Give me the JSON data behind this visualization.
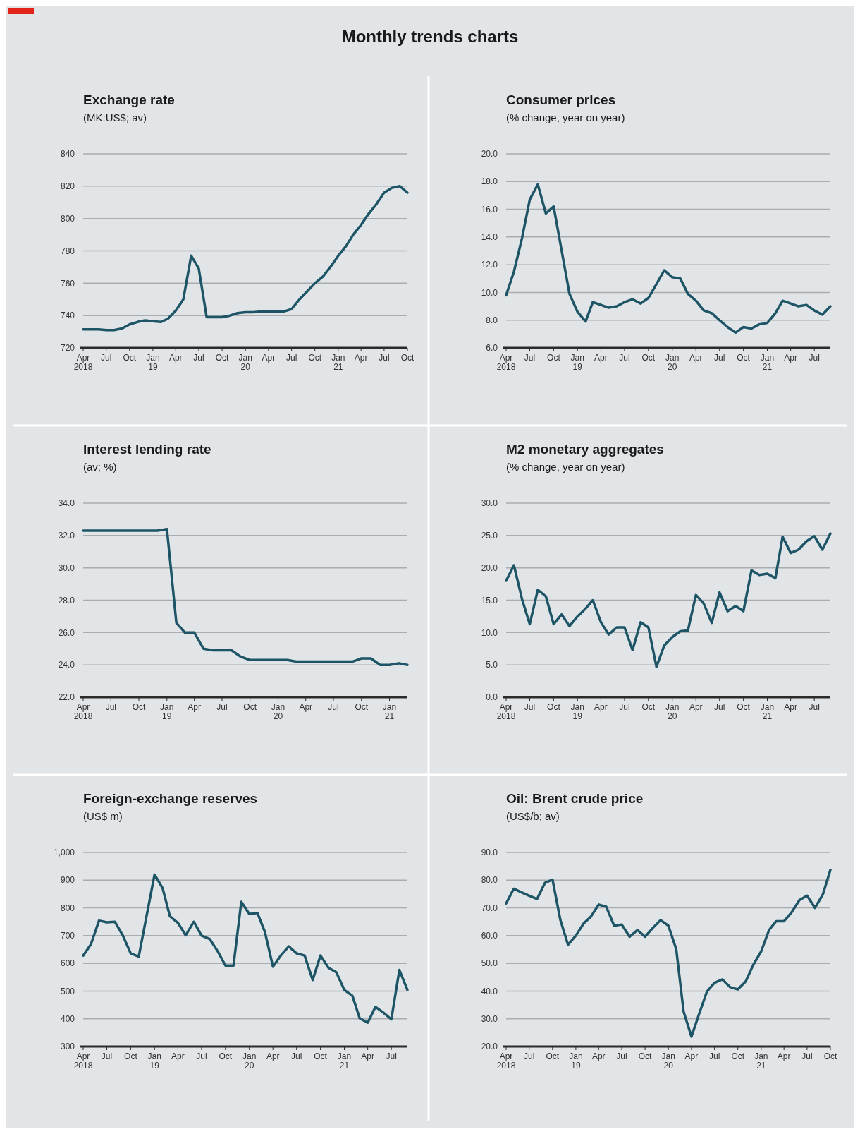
{
  "chart_data": [
    {
      "type": "other",
      "title": "Monthly trends charts"
    },
    {
      "type": "line",
      "title": "Exchange rate",
      "subtitle": "(MK:US$; av)",
      "grid": "y",
      "color": "#1d5466",
      "xlim": [
        "2018-04",
        "2021-10"
      ],
      "ylim": [
        720,
        840
      ],
      "yticks": [
        720,
        740,
        760,
        780,
        800,
        820,
        840
      ],
      "xticks": [
        {
          "value": "2018-04",
          "label": "Apr\n2018"
        },
        {
          "value": "2018-07",
          "label": "Jul"
        },
        {
          "value": "2018-10",
          "label": "Oct"
        },
        {
          "value": "2019-01",
          "label": "Jan\n19"
        },
        {
          "value": "2019-04",
          "label": "Apr"
        },
        {
          "value": "2019-07",
          "label": "Jul"
        },
        {
          "value": "2019-10",
          "label": "Oct"
        },
        {
          "value": "2020-01",
          "label": "Jan\n20"
        },
        {
          "value": "2020-04",
          "label": "Apr"
        },
        {
          "value": "2020-07",
          "label": "Jul"
        },
        {
          "value": "2020-10",
          "label": "Oct"
        },
        {
          "value": "2021-01",
          "label": "Jan\n21"
        },
        {
          "value": "2021-04",
          "label": "Apr"
        },
        {
          "value": "2021-07",
          "label": "Jul"
        },
        {
          "value": "2021-10",
          "label": "Oct"
        }
      ],
      "x": [
        "2018-04",
        "2018-05",
        "2018-06",
        "2018-07",
        "2018-08",
        "2018-09",
        "2018-10",
        "2018-11",
        "2018-12",
        "2019-01",
        "2019-02",
        "2019-03",
        "2019-04",
        "2019-05",
        "2019-06",
        "2019-07",
        "2019-08",
        "2019-09",
        "2019-10",
        "2019-11",
        "2019-12",
        "2020-01",
        "2020-02",
        "2020-03",
        "2020-04",
        "2020-05",
        "2020-06",
        "2020-07",
        "2020-08",
        "2020-09",
        "2020-10",
        "2020-11",
        "2020-12",
        "2021-01",
        "2021-02",
        "2021-03",
        "2021-04",
        "2021-05",
        "2021-06",
        "2021-07",
        "2021-08",
        "2021-09",
        "2021-10"
      ],
      "values": [
        731.5,
        731.5,
        731.5,
        731,
        731,
        732,
        734.5,
        736,
        737,
        736.5,
        736,
        738,
        743,
        750,
        777,
        769,
        739,
        739,
        739,
        740,
        741.5,
        742,
        742,
        742.5,
        742.5,
        742.5,
        742.5,
        744,
        750,
        755,
        760,
        764,
        770,
        777,
        783,
        790,
        796,
        803,
        809,
        816,
        819,
        820,
        816
      ]
    },
    {
      "type": "line",
      "title": "Consumer prices",
      "subtitle": "(% change, year on year)",
      "grid": "y",
      "color": "#1d5466",
      "xlim": [
        "2018-04",
        "2021-09"
      ],
      "ylim": [
        6,
        20
      ],
      "yticks": [
        {
          "value": 6,
          "label": "6.0"
        },
        {
          "value": 8,
          "label": "8.0"
        },
        {
          "value": 10,
          "label": "10.0"
        },
        {
          "value": 12,
          "label": "12.0"
        },
        {
          "value": 14,
          "label": "14.0"
        },
        {
          "value": 16,
          "label": "16.0"
        },
        {
          "value": 18,
          "label": "18.0"
        },
        {
          "value": 20,
          "label": "20.0"
        }
      ],
      "xticks": [
        {
          "value": "2018-04",
          "label": "Apr\n2018"
        },
        {
          "value": "2018-07",
          "label": "Jul"
        },
        {
          "value": "2018-10",
          "label": "Oct"
        },
        {
          "value": "2019-01",
          "label": "Jan\n19"
        },
        {
          "value": "2019-04",
          "label": "Apr"
        },
        {
          "value": "2019-07",
          "label": "Jul"
        },
        {
          "value": "2019-10",
          "label": "Oct"
        },
        {
          "value": "2020-01",
          "label": "Jan\n20"
        },
        {
          "value": "2020-04",
          "label": "Apr"
        },
        {
          "value": "2020-07",
          "label": "Jul"
        },
        {
          "value": "2020-10",
          "label": "Oct"
        },
        {
          "value": "2021-01",
          "label": "Jan\n21"
        },
        {
          "value": "2021-04",
          "label": "Apr"
        },
        {
          "value": "2021-07",
          "label": "Jul"
        }
      ],
      "x": [
        "2018-04",
        "2018-05",
        "2018-06",
        "2018-07",
        "2018-08",
        "2018-09",
        "2018-10",
        "2018-11",
        "2018-12",
        "2019-01",
        "2019-02",
        "2019-03",
        "2019-04",
        "2019-05",
        "2019-06",
        "2019-07",
        "2019-08",
        "2019-09",
        "2019-10",
        "2019-11",
        "2019-12",
        "2020-01",
        "2020-02",
        "2020-03",
        "2020-04",
        "2020-05",
        "2020-06",
        "2020-07",
        "2020-08",
        "2020-09",
        "2020-10",
        "2020-11",
        "2020-12",
        "2021-01",
        "2021-02",
        "2021-03",
        "2021-04",
        "2021-05",
        "2021-06",
        "2021-07",
        "2021-08",
        "2021-09"
      ],
      "values": [
        9.8,
        11.5,
        13.9,
        16.7,
        17.8,
        15.7,
        16.2,
        13.0,
        9.9,
        8.6,
        7.9,
        9.3,
        9.1,
        8.9,
        9.0,
        9.3,
        9.5,
        9.2,
        9.6,
        10.6,
        11.6,
        11.1,
        11.0,
        9.9,
        9.4,
        8.7,
        8.5,
        8.0,
        7.5,
        7.1,
        7.5,
        7.4,
        7.7,
        7.8,
        8.5,
        9.4,
        9.2,
        9.0,
        9.1,
        8.7,
        8.4,
        9.0
      ]
    },
    {
      "type": "line",
      "title": "Interest lending rate",
      "subtitle": "(av; %)",
      "grid": "y",
      "color": "#1d5466",
      "xlim": [
        "2018-04",
        "2021-03"
      ],
      "ylim": [
        22,
        34
      ],
      "yticks": [
        {
          "value": 22,
          "label": "22.0"
        },
        {
          "value": 24,
          "label": "24.0"
        },
        {
          "value": 26,
          "label": "26.0"
        },
        {
          "value": 28,
          "label": "28.0"
        },
        {
          "value": 30,
          "label": "30.0"
        },
        {
          "value": 32,
          "label": "32.0"
        },
        {
          "value": 34,
          "label": "34.0"
        }
      ],
      "xticks": [
        {
          "value": "2018-04",
          "label": "Apr\n2018"
        },
        {
          "value": "2018-07",
          "label": "Jul"
        },
        {
          "value": "2018-10",
          "label": "Oct"
        },
        {
          "value": "2019-01",
          "label": "Jan\n19"
        },
        {
          "value": "2019-04",
          "label": "Apr"
        },
        {
          "value": "2019-07",
          "label": "Jul"
        },
        {
          "value": "2019-10",
          "label": "Oct"
        },
        {
          "value": "2020-01",
          "label": "Jan\n20"
        },
        {
          "value": "2020-04",
          "label": "Apr"
        },
        {
          "value": "2020-07",
          "label": "Jul"
        },
        {
          "value": "2020-10",
          "label": "Oct"
        },
        {
          "value": "2021-01",
          "label": "Jan\n21"
        }
      ],
      "x": [
        "2018-04",
        "2018-05",
        "2018-06",
        "2018-07",
        "2018-08",
        "2018-09",
        "2018-10",
        "2018-11",
        "2018-12",
        "2019-01",
        "2019-02",
        "2019-03",
        "2019-04",
        "2019-05",
        "2019-06",
        "2019-07",
        "2019-08",
        "2019-09",
        "2019-10",
        "2019-11",
        "2019-12",
        "2020-01",
        "2020-02",
        "2020-03",
        "2020-04",
        "2020-05",
        "2020-06",
        "2020-07",
        "2020-08",
        "2020-09",
        "2020-10",
        "2020-11",
        "2020-12",
        "2021-01",
        "2021-02",
        "2021-03"
      ],
      "values": [
        32.3,
        32.3,
        32.3,
        32.3,
        32.3,
        32.3,
        32.3,
        32.3,
        32.3,
        32.4,
        26.6,
        26.0,
        26.0,
        25.0,
        24.9,
        24.9,
        24.9,
        24.5,
        24.3,
        24.3,
        24.3,
        24.3,
        24.3,
        24.2,
        24.2,
        24.2,
        24.2,
        24.2,
        24.2,
        24.2,
        24.4,
        24.4,
        24.0,
        24.0,
        24.1,
        24.0
      ]
    },
    {
      "type": "line",
      "title": "M2 monetary aggregates",
      "subtitle": "(% change, year on year)",
      "grid": "y",
      "color": "#1d5466",
      "xlim": [
        "2018-04",
        "2021-09"
      ],
      "ylim": [
        0,
        30
      ],
      "yticks": [
        {
          "value": 0,
          "label": "0.0"
        },
        {
          "value": 5,
          "label": "5.0"
        },
        {
          "value": 10,
          "label": "10.0"
        },
        {
          "value": 15,
          "label": "15.0"
        },
        {
          "value": 20,
          "label": "20.0"
        },
        {
          "value": 25,
          "label": "25.0"
        },
        {
          "value": 30,
          "label": "30.0"
        }
      ],
      "xticks": [
        {
          "value": "2018-04",
          "label": "Apr\n2018"
        },
        {
          "value": "2018-07",
          "label": "Jul"
        },
        {
          "value": "2018-10",
          "label": "Oct"
        },
        {
          "value": "2019-01",
          "label": "Jan\n19"
        },
        {
          "value": "2019-04",
          "label": "Apr"
        },
        {
          "value": "2019-07",
          "label": "Jul"
        },
        {
          "value": "2019-10",
          "label": "Oct"
        },
        {
          "value": "2020-01",
          "label": "Jan\n20"
        },
        {
          "value": "2020-04",
          "label": "Apr"
        },
        {
          "value": "2020-07",
          "label": "Jul"
        },
        {
          "value": "2020-10",
          "label": "Oct"
        },
        {
          "value": "2021-01",
          "label": "Jan\n21"
        },
        {
          "value": "2021-04",
          "label": "Apr"
        },
        {
          "value": "2021-07",
          "label": "Jul"
        }
      ],
      "x": [
        "2018-04",
        "2018-05",
        "2018-06",
        "2018-07",
        "2018-08",
        "2018-09",
        "2018-10",
        "2018-11",
        "2018-12",
        "2019-01",
        "2019-02",
        "2019-03",
        "2019-04",
        "2019-05",
        "2019-06",
        "2019-07",
        "2019-08",
        "2019-09",
        "2019-10",
        "2019-11",
        "2019-12",
        "2020-01",
        "2020-02",
        "2020-03",
        "2020-04",
        "2020-05",
        "2020-06",
        "2020-07",
        "2020-08",
        "2020-09",
        "2020-10",
        "2020-11",
        "2020-12",
        "2021-01",
        "2021-02",
        "2021-03",
        "2021-04",
        "2021-05",
        "2021-06",
        "2021-07",
        "2021-08",
        "2021-09"
      ],
      "values": [
        18.0,
        20.4,
        15.2,
        11.3,
        16.6,
        15.6,
        11.3,
        12.8,
        11.0,
        12.5,
        13.7,
        15.0,
        11.6,
        9.7,
        10.8,
        10.8,
        7.3,
        11.6,
        10.8,
        4.7,
        8.0,
        9.3,
        10.2,
        10.3,
        15.8,
        14.5,
        11.5,
        16.2,
        13.3,
        14.1,
        13.3,
        19.6,
        18.9,
        19.1,
        18.4,
        24.8,
        22.3,
        22.8,
        24.1,
        24.9,
        22.8,
        25.3
      ]
    },
    {
      "type": "line",
      "title": "Foreign-exchange reserves",
      "subtitle": "(US$ m)",
      "grid": "y",
      "color": "#1d5466",
      "xlim": [
        "2018-04",
        "2021-09"
      ],
      "ylim": [
        300,
        1000
      ],
      "yticks": [
        300,
        400,
        500,
        600,
        700,
        800,
        900,
        {
          "value": 1000,
          "label": "1,000"
        }
      ],
      "xticks": [
        {
          "value": "2018-04",
          "label": "Apr\n2018"
        },
        {
          "value": "2018-07",
          "label": "Jul"
        },
        {
          "value": "2018-10",
          "label": "Oct"
        },
        {
          "value": "2019-01",
          "label": "Jan\n19"
        },
        {
          "value": "2019-04",
          "label": "Apr"
        },
        {
          "value": "2019-07",
          "label": "Jul"
        },
        {
          "value": "2019-10",
          "label": "Oct"
        },
        {
          "value": "2020-01",
          "label": "Jan\n20"
        },
        {
          "value": "2020-04",
          "label": "Apr"
        },
        {
          "value": "2020-07",
          "label": "Jul"
        },
        {
          "value": "2020-10",
          "label": "Oct"
        },
        {
          "value": "2021-01",
          "label": "Jan\n21"
        },
        {
          "value": "2021-04",
          "label": "Apr"
        },
        {
          "value": "2021-07",
          "label": "Jul"
        }
      ],
      "x": [
        "2018-04",
        "2018-05",
        "2018-06",
        "2018-07",
        "2018-08",
        "2018-09",
        "2018-10",
        "2018-11",
        "2018-12",
        "2019-01",
        "2019-02",
        "2019-03",
        "2019-04",
        "2019-05",
        "2019-06",
        "2019-07",
        "2019-08",
        "2019-09",
        "2019-10",
        "2019-11",
        "2019-12",
        "2020-01",
        "2020-02",
        "2020-03",
        "2020-04",
        "2020-05",
        "2020-06",
        "2020-07",
        "2020-08",
        "2020-09",
        "2020-10",
        "2020-11",
        "2020-12",
        "2021-01",
        "2021-02",
        "2021-03",
        "2021-04",
        "2021-05",
        "2021-06",
        "2021-07",
        "2021-08",
        "2021-09"
      ],
      "values": [
        628,
        669,
        754,
        748,
        750,
        700,
        636,
        624,
        770,
        920,
        871,
        770,
        746,
        701,
        750,
        700,
        688,
        644,
        592,
        592,
        822,
        778,
        782,
        713,
        588,
        628,
        661,
        636,
        628,
        540,
        628,
        584,
        568,
        504,
        483,
        402,
        386,
        443,
        422,
        398,
        576,
        504
      ]
    },
    {
      "type": "line",
      "title": "Oil: Brent crude price",
      "subtitle": "(US$/b; av)",
      "grid": "y",
      "color": "#1d5466",
      "xlim": [
        "2018-04",
        "2021-10"
      ],
      "ylim": [
        20,
        90
      ],
      "yticks": [
        {
          "value": 20,
          "label": "20.0"
        },
        {
          "value": 30,
          "label": "30.0"
        },
        {
          "value": 40,
          "label": "40.0"
        },
        {
          "value": 50,
          "label": "50.0"
        },
        {
          "value": 60,
          "label": "60.0"
        },
        {
          "value": 70,
          "label": "70.0"
        },
        {
          "value": 80,
          "label": "80.0"
        },
        {
          "value": 90,
          "label": "90.0"
        }
      ],
      "xticks": [
        {
          "value": "2018-04",
          "label": "Apr\n2018"
        },
        {
          "value": "2018-07",
          "label": "Jul"
        },
        {
          "value": "2018-10",
          "label": "Oct"
        },
        {
          "value": "2019-01",
          "label": "Jan\n19"
        },
        {
          "value": "2019-04",
          "label": "Apr"
        },
        {
          "value": "2019-07",
          "label": "Jul"
        },
        {
          "value": "2019-10",
          "label": "Oct"
        },
        {
          "value": "2020-01",
          "label": "Jan\n20"
        },
        {
          "value": "2020-04",
          "label": "Apr"
        },
        {
          "value": "2020-07",
          "label": "Jul"
        },
        {
          "value": "2020-10",
          "label": "Oct"
        },
        {
          "value": "2021-01",
          "label": "Jan\n21"
        },
        {
          "value": "2021-04",
          "label": "Apr"
        },
        {
          "value": "2021-07",
          "label": "Jul"
        },
        {
          "value": "2021-10",
          "label": "Oct"
        }
      ],
      "x": [
        "2018-04",
        "2018-05",
        "2018-06",
        "2018-07",
        "2018-08",
        "2018-09",
        "2018-10",
        "2018-11",
        "2018-12",
        "2019-01",
        "2019-02",
        "2019-03",
        "2019-04",
        "2019-05",
        "2019-06",
        "2019-07",
        "2019-08",
        "2019-09",
        "2019-10",
        "2019-11",
        "2019-12",
        "2020-01",
        "2020-02",
        "2020-03",
        "2020-04",
        "2020-05",
        "2020-06",
        "2020-07",
        "2020-08",
        "2020-09",
        "2020-10",
        "2020-11",
        "2020-12",
        "2021-01",
        "2021-02",
        "2021-03",
        "2021-04",
        "2021-05",
        "2021-06",
        "2021-07",
        "2021-08",
        "2021-09",
        "2021-10"
      ],
      "values": [
        71.6,
        76.9,
        75.6,
        74.4,
        73.2,
        79.0,
        80.2,
        65.6,
        56.7,
        60.0,
        64.4,
        66.8,
        71.2,
        70.4,
        63.6,
        64.0,
        59.6,
        62.0,
        59.6,
        62.8,
        65.6,
        63.6,
        55.1,
        32.6,
        23.6,
        31.7,
        39.8,
        43.0,
        44.2,
        41.4,
        40.6,
        43.5,
        49.5,
        54.3,
        62.0,
        65.2,
        65.2,
        68.4,
        72.8,
        74.4,
        70.0,
        74.8,
        83.7
      ]
    }
  ]
}
